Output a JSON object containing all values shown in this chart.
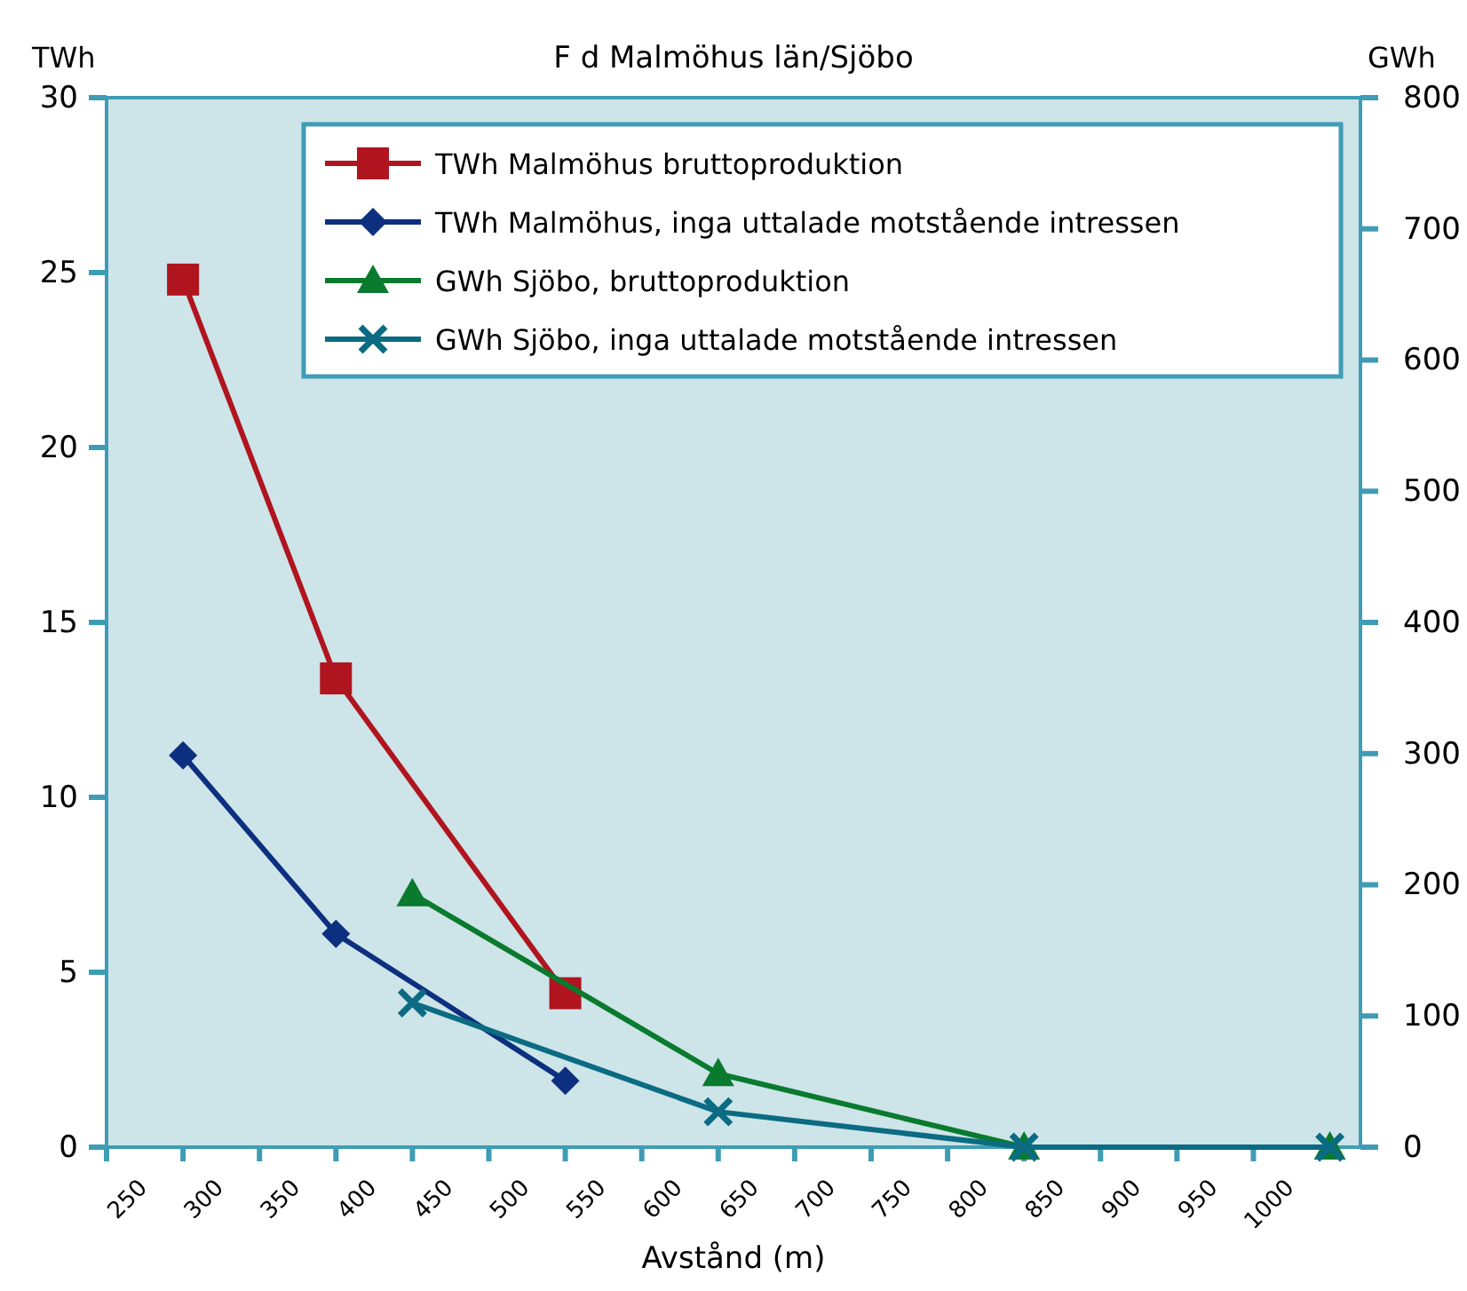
{
  "chart_data": {
    "type": "line",
    "title": "F d Malmöhus län/Sjöbo",
    "xlabel": "Avstånd (m)",
    "ylabel": "TWh",
    "y2label": "GWh",
    "xlim": [
      250,
      1070
    ],
    "xticks": [
      250,
      300,
      350,
      400,
      450,
      500,
      550,
      600,
      650,
      700,
      750,
      800,
      850,
      900,
      950,
      1000
    ],
    "ylim": [
      0,
      30
    ],
    "yticks": [
      0,
      5,
      10,
      15,
      20,
      25,
      30
    ],
    "y2lim": [
      0,
      800
    ],
    "y2ticks": [
      0,
      100,
      200,
      300,
      400,
      500,
      600,
      700,
      800
    ],
    "legend": "top",
    "grid": false,
    "line_style": "solid",
    "series": [
      {
        "name": "TWh Malmöhus bruttoproduktion",
        "color": "#b0141f",
        "marker": "square",
        "x": [
          300,
          400,
          550
        ],
        "values": [
          24.8,
          13.4,
          4.4
        ]
      },
      {
        "name": "TWh Malmöhus, inga uttalade motstående intressen",
        "color": "#0d2f7f",
        "marker": "diamond",
        "x": [
          300,
          400,
          550
        ],
        "values": [
          11.2,
          6.1,
          1.9
        ]
      },
      {
        "name": "GWh Sjöbo, bruttoproduktion",
        "color": "#0a7a2e",
        "marker": "triangle",
        "axis": "y2",
        "x": [
          450,
          650,
          850,
          1050
        ],
        "values": [
          193,
          56,
          0,
          0
        ]
      },
      {
        "name": "GWh Sjöbo, inga uttalade motstående intressen",
        "color": "#0b6b82",
        "marker": "cross",
        "axis": "y2",
        "x": [
          450,
          650,
          850,
          1050
        ],
        "values": [
          110,
          27,
          0,
          0
        ]
      }
    ]
  }
}
